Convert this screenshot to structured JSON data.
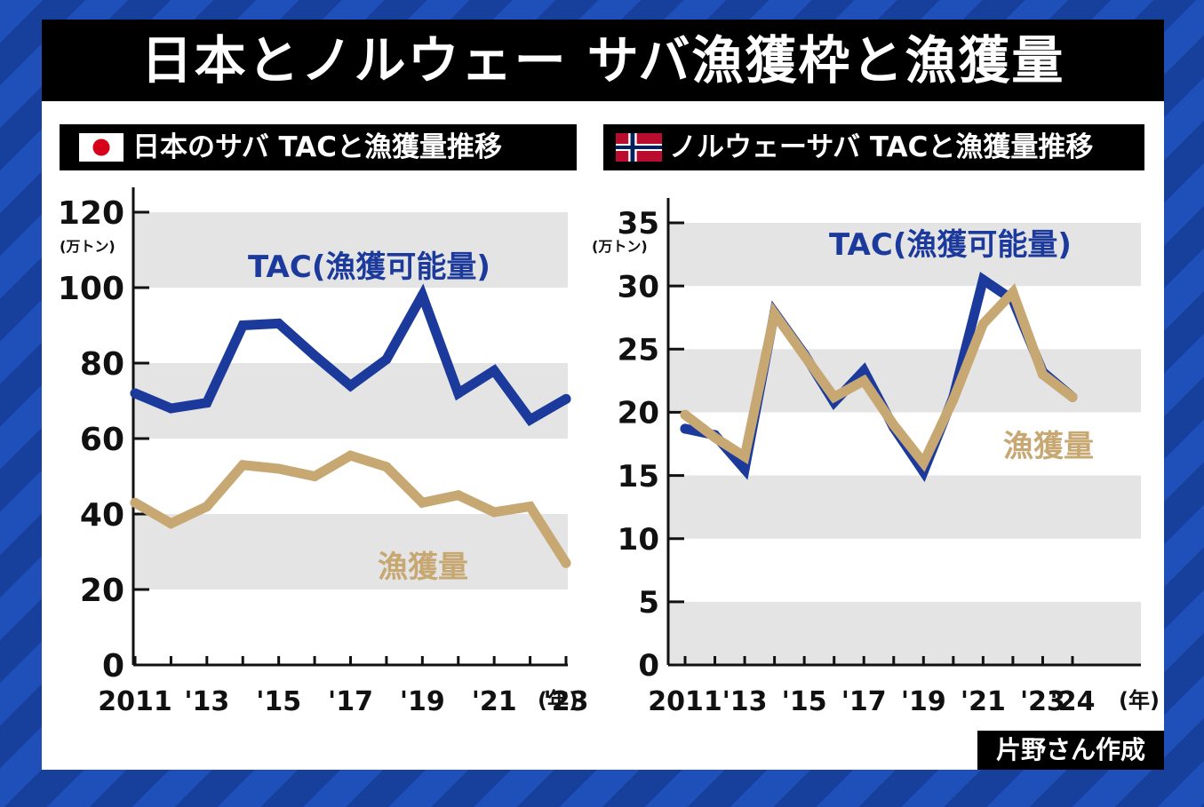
{
  "page": {
    "title": "日本とノルウェー サバ漁獲枠と漁獲量",
    "credit": "片野さん作成"
  },
  "colors": {
    "background": "#1f4fb8",
    "tac": "#1b3a9c",
    "catch": "#c7a873",
    "band": "#e4e4e4"
  },
  "chart_data": [
    {
      "type": "line",
      "title": "日本のサバ TACと漁獲量推移",
      "flag_icon": "japan-flag-icon",
      "unit": "(万トン)",
      "x_suffix": "(年)",
      "x": [
        2011,
        2012,
        2013,
        2014,
        2015,
        2016,
        2017,
        2018,
        2019,
        2020,
        2021,
        2022,
        2023
      ],
      "x_tick_labels": [
        "2011",
        "'13",
        "'15",
        "'17",
        "'19",
        "'21",
        "'23"
      ],
      "x_tick_values": [
        2011,
        2013,
        2015,
        2017,
        2019,
        2021,
        2023
      ],
      "y_tick_labels": [
        "0",
        "20",
        "40",
        "60",
        "80",
        "100",
        "120"
      ],
      "ylim": [
        0,
        120
      ],
      "yticks": [
        0,
        20,
        40,
        60,
        80,
        100,
        120
      ],
      "grid_bands": [
        [
          20,
          40
        ],
        [
          60,
          80
        ],
        [
          100,
          120
        ]
      ],
      "series": [
        {
          "name": "TAC(漁獲可能量)",
          "key": "tac",
          "values": [
            72,
            68,
            69.5,
            90,
            90.5,
            82,
            74,
            81,
            98,
            72,
            78,
            65,
            70.5
          ]
        },
        {
          "name": "漁獲量",
          "key": "catch",
          "values": [
            43,
            37.5,
            42,
            53,
            52,
            50,
            55.5,
            52.5,
            43,
            45,
            40.5,
            42,
            27
          ]
        }
      ]
    },
    {
      "type": "line",
      "title": "ノルウェーサバ TACと漁獲量推移",
      "flag_icon": "norway-flag-icon",
      "unit": "(万トン)",
      "x_suffix": "(年)",
      "x": [
        2011,
        2012,
        2013,
        2014,
        2015,
        2016,
        2017,
        2018,
        2019,
        2020,
        2021,
        2022,
        2023,
        2024
      ],
      "x_tick_labels": [
        "2011",
        "'13",
        "'15",
        "'17",
        "'19",
        "'21",
        "'23",
        "'24"
      ],
      "x_tick_values": [
        2011,
        2013,
        2015,
        2017,
        2019,
        2021,
        2023,
        2024
      ],
      "y_tick_labels": [
        "0",
        "5",
        "10",
        "15",
        "20",
        "25",
        "30",
        "35"
      ],
      "ylim": [
        0,
        35
      ],
      "yticks": [
        0,
        5,
        10,
        15,
        20,
        25,
        30,
        35
      ],
      "grid_bands": [
        [
          0,
          5
        ],
        [
          10,
          15
        ],
        [
          20,
          25
        ],
        [
          30,
          35
        ]
      ],
      "series": [
        {
          "name": "TAC(漁獲可能量)",
          "key": "tac",
          "values": [
            18.7,
            18.2,
            15.5,
            27.9,
            24.6,
            20.8,
            23.3,
            18.8,
            15.3,
            21.2,
            30.5,
            28.9,
            23.2,
            21.2
          ]
        },
        {
          "name": "漁獲量",
          "key": "catch",
          "values": [
            19.8,
            18,
            16.5,
            27.8,
            24.5,
            21.2,
            22.5,
            19,
            16,
            21,
            27,
            29.5,
            23,
            21.2
          ]
        }
      ]
    }
  ]
}
